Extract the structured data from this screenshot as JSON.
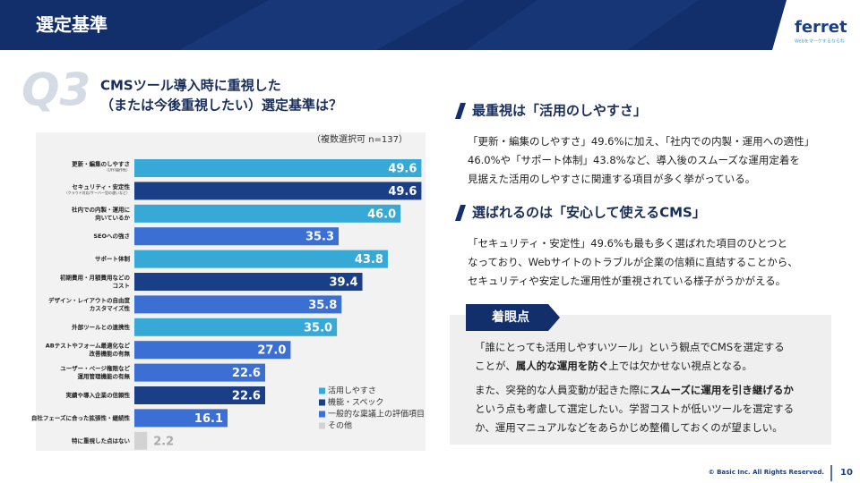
{
  "header": {
    "title": "選定基準",
    "logo": "ferret",
    "tagline": "Webをマーケするならね"
  },
  "question": {
    "label": "Q3",
    "lines": [
      "CMSツール導入時に重視した",
      "（または今後重視したい）選定基準は？"
    ]
  },
  "chart_data": {
    "type": "bar",
    "orientation": "horizontal",
    "note": "（複数選択可  n=137）",
    "categories": [
      [
        "更新・編集のしやすさ"
      ],
      [
        "セキュリティ・安定性"
      ],
      [
        "社内での内製・運用に",
        "向いているか"
      ],
      [
        "SEOへの強さ"
      ],
      [
        "サポート体制"
      ],
      [
        "初期費用・月額費用などの",
        "コスト"
      ],
      [
        "デザイン・レイアウトの自由度",
        "カスタマイズ性"
      ],
      [
        "外部ツールとの連携性"
      ],
      [
        "ABテストやフォーム最適化など",
        "改善機能の有無"
      ],
      [
        "ユーザー・ページ権限など",
        "運用管理機能の有無"
      ],
      [
        "実績や導入企業の信頼性"
      ],
      [
        "自社フェーズに合った拡張性・継続性"
      ],
      [
        "特に重視した点はない"
      ]
    ],
    "category_notes": [
      "（UIや操作性）",
      "（クラウド対応/サーバー型の違いなど）",
      null,
      null,
      null,
      null,
      null,
      null,
      null,
      null,
      null,
      null,
      null
    ],
    "xlim": [
      0,
      50
    ],
    "series": [
      {
        "name": "活用しやすさ",
        "color": "#36a9d6",
        "values": [
          49.6,
          null,
          46.0,
          null,
          43.8,
          null,
          null,
          35.0,
          null,
          null,
          null,
          null,
          null
        ],
        "value_labels": [
          "49.6",
          null,
          "46.0",
          null,
          "43.8",
          null,
          null,
          "35.0",
          null,
          null,
          null,
          null,
          null
        ]
      },
      {
        "name": "機能・スペック",
        "color": "#1b3f86",
        "values": [
          null,
          49.6,
          null,
          null,
          null,
          39.4,
          null,
          null,
          null,
          null,
          22.6,
          null,
          null
        ],
        "value_labels": [
          null,
          "49.6",
          null,
          null,
          null,
          "39.4",
          null,
          null,
          null,
          null,
          "22.6",
          null,
          null
        ]
      },
      {
        "name": "一般的な稟議上の評価項目",
        "color": "#3b6fd4",
        "values": [
          null,
          null,
          null,
          35.3,
          null,
          null,
          35.8,
          null,
          27.0,
          22.6,
          null,
          16.1,
          null
        ],
        "value_labels": [
          null,
          null,
          null,
          "35.3",
          null,
          null,
          "35.8",
          null,
          "27.0",
          "22.6",
          null,
          "16.1",
          null
        ]
      },
      {
        "name": "その他",
        "color": "#d3d3d3",
        "values": [
          null,
          null,
          null,
          null,
          null,
          null,
          null,
          null,
          null,
          null,
          null,
          null,
          2.2
        ],
        "value_labels": [
          null,
          null,
          null,
          null,
          null,
          null,
          null,
          null,
          null,
          null,
          null,
          null,
          "2.2"
        ]
      }
    ]
  },
  "sections": [
    {
      "heading": "最重視は「活用のしやすさ」",
      "lines": [
        [
          {
            "text": "「更新・編集のしやすさ」49.6%に加え、「社内での内製・運用への適性」"
          }
        ],
        [
          {
            "text": "46.0%や「サポート体制」43.8%など、導入後のスムーズな運用定着を"
          }
        ],
        [
          {
            "text": "見据えた活用のしやすさに関連する項目が多く挙がっている。"
          }
        ]
      ]
    },
    {
      "heading": "選ばれるのは「安心して使えるCMS」",
      "lines": [
        [
          {
            "text": "「セキュリティ・安定性」49.6%も最も多く選ばれた項目のひとつと"
          }
        ],
        [
          {
            "text": "なっており、Webサイトのトラブルが企業の信頼に直結することから、"
          }
        ],
        [
          {
            "text": "セキュリティや安定した運用性が重視されている様子がうかがえる。"
          }
        ]
      ]
    }
  ],
  "focus": {
    "label": "着眼点",
    "paragraphs": [
      [
        [
          {
            "text": "「誰にとっても活用しやすいツール」という観点でCMSを選定する"
          }
        ],
        [
          {
            "text": "ことが、"
          },
          {
            "text": "属人的な運用を防ぐ",
            "bold": true
          },
          {
            "text": "上では欠かせない視点となる。"
          }
        ]
      ],
      [
        [
          {
            "text": "また、突発的な人員変動が起きた際に"
          },
          {
            "text": "スムーズに運用を引き継げるか",
            "bold": true
          }
        ],
        [
          {
            "text": "という点も考慮して選定したい。学習コストが低いツールを選定する"
          }
        ],
        [
          {
            "text": "か、運用マニュアルなどをあらかじめ整備しておくのが望ましい。"
          }
        ]
      ]
    ]
  },
  "footer": {
    "copyright": "© Basic Inc. All Rights Reserved.",
    "page": "10"
  }
}
